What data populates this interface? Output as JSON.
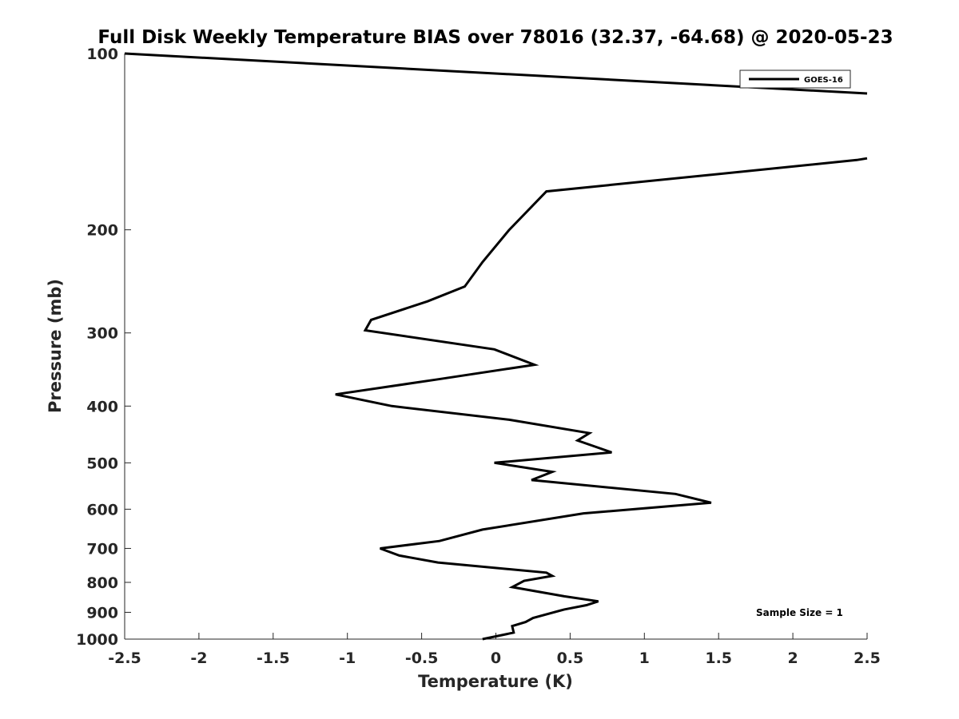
{
  "chart_data": {
    "type": "line",
    "title": "Full Disk Weekly Temperature BIAS over 78016 (32.37, -64.68) @ 2020-05-23",
    "xlabel": "Temperature (K)",
    "ylabel": "Pressure (mb)",
    "xlim": [
      -2.5,
      2.5
    ],
    "ylim": [
      100,
      1000
    ],
    "y_scale": "log",
    "y_reversed": true,
    "x_ticks": [
      "-2.5",
      "-2",
      "-1.5",
      "-1",
      "-0.5",
      "0",
      "0.5",
      "1",
      "1.5",
      "2",
      "2.5"
    ],
    "y_ticks": [
      "100",
      "200",
      "300",
      "400",
      "500",
      "600",
      "700",
      "800",
      "900",
      "1000"
    ],
    "grid": false,
    "legend": {
      "position": "top-right",
      "entries": [
        "GOES-16"
      ]
    },
    "annotation": "Sample Size = 1",
    "series": [
      {
        "name": "GOES-16",
        "color": "#000000",
        "segments": [
          {
            "x": [
              -2.5,
              2.5
            ],
            "y": [
              100,
              117
            ]
          },
          {
            "x": [
              2.5,
              2.43,
              0.34,
              0.09,
              -0.09,
              -0.21,
              -0.46,
              -0.84,
              -0.88,
              -0.01,
              0.26,
              -0.39,
              -1.08,
              -0.7,
              0.09,
              0.63,
              0.55,
              0.78,
              -0.01,
              0.38,
              0.24,
              1.21,
              1.45,
              0.59,
              -0.09,
              -0.38,
              -0.78,
              -0.65,
              -0.39,
              0.34,
              0.38,
              0.19,
              0.11,
              0.46,
              0.69,
              0.61,
              0.46,
              0.25,
              0.2,
              0.11,
              0.12,
              -0.09
            ]
          }
        ],
        "segment_y": [
          151,
          152,
          172,
          200,
          227,
          250,
          265,
          285,
          297,
          320,
          340,
          360,
          382,
          400,
          422,
          445,
          458,
          480,
          500,
          518,
          535,
          565,
          585,
          610,
          650,
          680,
          700,
          720,
          740,
          770,
          780,
          795,
          815,
          845,
          862,
          875,
          890,
          920,
          935,
          950,
          975,
          1000
        ]
      }
    ]
  }
}
